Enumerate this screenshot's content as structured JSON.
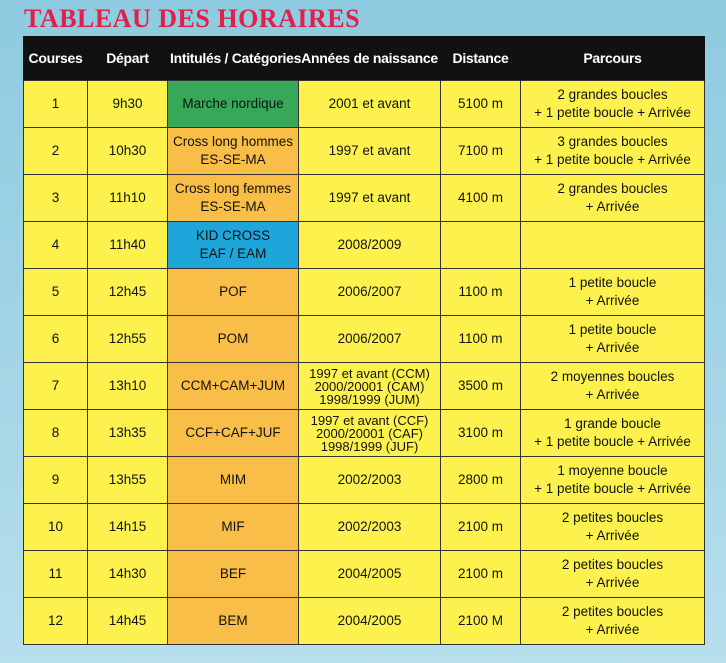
{
  "title": "TABLEAU DES HORAIRES",
  "headers": [
    "Courses",
    "Départ",
    "Intitulés / Catégories",
    "Années de naissance",
    "Distance",
    "Parcours"
  ],
  "colors": {
    "title": "#e0204a",
    "header_bg": "#111111",
    "cell": "#fdf24d",
    "orange": "#f9be47",
    "green": "#37a857",
    "blue": "#1ea6db"
  },
  "rows": [
    {
      "course": "1",
      "depart": "9h30",
      "category": [
        "Marche nordique"
      ],
      "cat_color": "green",
      "years": [
        "2001 et avant"
      ],
      "distance": "5100 m",
      "parcours": [
        "2 grandes boucles",
        "+ 1 petite boucle + Arrivée"
      ]
    },
    {
      "course": "2",
      "depart": "10h30",
      "category": [
        "Cross long hommes",
        "ES-SE-MA"
      ],
      "cat_color": "orange",
      "years": [
        "1997 et avant"
      ],
      "distance": "7100 m",
      "parcours": [
        "3 grandes boucles",
        "+ 1 petite boucle + Arrivée"
      ]
    },
    {
      "course": "3",
      "depart": "11h10",
      "category": [
        "Cross long femmes",
        "ES-SE-MA"
      ],
      "cat_color": "orange",
      "years": [
        "1997 et avant"
      ],
      "distance": "4100 m",
      "parcours": [
        "2 grandes boucles",
        "+ Arrivée"
      ]
    },
    {
      "course": "4",
      "depart": "11h40",
      "category": [
        "KID CROSS",
        "EAF / EAM"
      ],
      "cat_color": "blue",
      "years": [
        "2008/2009"
      ],
      "distance": "",
      "parcours": []
    },
    {
      "course": "5",
      "depart": "12h45",
      "category": [
        "POF"
      ],
      "cat_color": "orange",
      "years": [
        "2006/2007"
      ],
      "distance": "1100 m",
      "parcours": [
        "1 petite boucle",
        "+ Arrivée"
      ]
    },
    {
      "course": "6",
      "depart": "12h55",
      "category": [
        "POM"
      ],
      "cat_color": "orange",
      "years": [
        "2006/2007"
      ],
      "distance": "1100 m",
      "parcours": [
        "1 petite boucle",
        "+ Arrivée"
      ]
    },
    {
      "course": "7",
      "depart": "13h10",
      "category": [
        "CCM+CAM+JUM"
      ],
      "cat_color": "orange",
      "years": [
        "1997 et avant (CCM)",
        "2000/20001 (CAM)",
        "1998/1999 (JUM)"
      ],
      "distance": "3500 m",
      "parcours": [
        "2 moyennes boucles",
        "+ Arrivée"
      ]
    },
    {
      "course": "8",
      "depart": "13h35",
      "category": [
        "CCF+CAF+JUF"
      ],
      "cat_color": "orange",
      "years": [
        "1997 et avant (CCF)",
        "2000/20001 (CAF)",
        "1998/1999 (JUF)"
      ],
      "distance": "3100 m",
      "parcours": [
        "1 grande boucle",
        "+ 1 petite boucle + Arrivée"
      ]
    },
    {
      "course": "9",
      "depart": "13h55",
      "category": [
        "MIM"
      ],
      "cat_color": "orange",
      "years": [
        "2002/2003"
      ],
      "distance": "2800 m",
      "parcours": [
        "1 moyenne boucle",
        "+ 1 petite boucle + Arrivée"
      ]
    },
    {
      "course": "10",
      "depart": "14h15",
      "category": [
        "MIF"
      ],
      "cat_color": "orange",
      "years": [
        "2002/2003"
      ],
      "distance": "2100 m",
      "parcours": [
        "2 petites boucles",
        "+ Arrivée"
      ]
    },
    {
      "course": "11",
      "depart": "14h30",
      "category": [
        "BEF"
      ],
      "cat_color": "orange",
      "years": [
        "2004/2005"
      ],
      "distance": "2100 m",
      "parcours": [
        "2 petites boucles",
        "+ Arrivée"
      ]
    },
    {
      "course": "12",
      "depart": "14h45",
      "category": [
        "BEM"
      ],
      "cat_color": "orange",
      "years": [
        "2004/2005"
      ],
      "distance": "2100 M",
      "parcours": [
        "2 petites boucles",
        "+ Arrivée"
      ]
    }
  ]
}
